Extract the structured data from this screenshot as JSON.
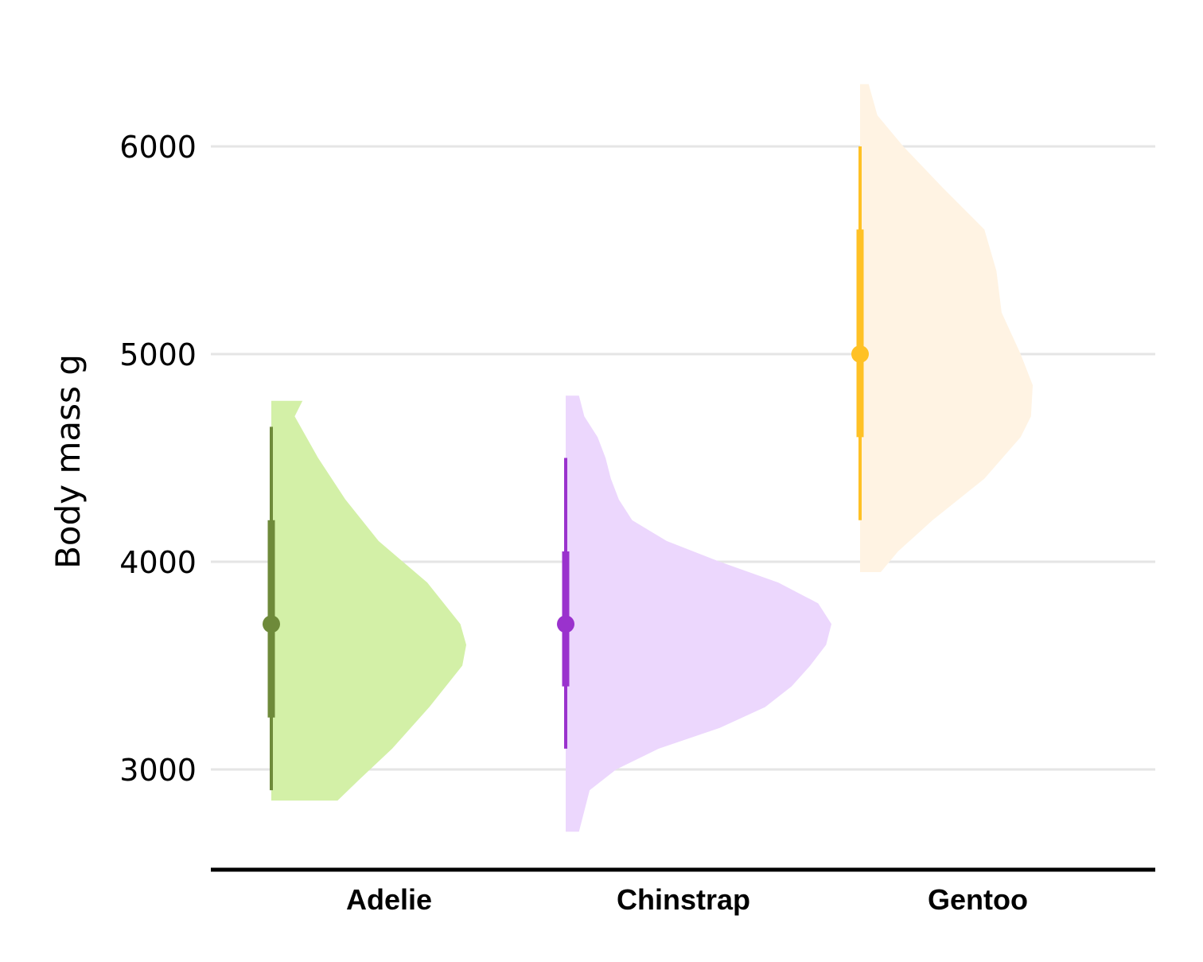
{
  "chart_data": {
    "type": "violin",
    "orientation": "vertical",
    "style": "half-violin with interval bars and median point",
    "title": "",
    "xlabel": "",
    "ylabel": "Body mass g",
    "ylim": [
      2520,
      6300
    ],
    "yticks": [
      3000,
      4000,
      5000,
      6000
    ],
    "grid": "horizontal",
    "categories": [
      "Adelie",
      "Chinstrap",
      "Gentoo"
    ],
    "series": [
      {
        "category": "Adelie",
        "fill_color": "#D3F0A7",
        "stat_color": "#6E8A3A",
        "min": 2900,
        "q1": 3250,
        "median": 3700,
        "q3": 4200,
        "max": 4650,
        "density": [
          [
            2850,
            0.34
          ],
          [
            2950,
            0.45
          ],
          [
            3100,
            0.62
          ],
          [
            3300,
            0.81
          ],
          [
            3500,
            0.98
          ],
          [
            3600,
            1.0
          ],
          [
            3700,
            0.97
          ],
          [
            3900,
            0.8
          ],
          [
            4100,
            0.55
          ],
          [
            4300,
            0.38
          ],
          [
            4500,
            0.24
          ],
          [
            4700,
            0.12
          ],
          [
            4775,
            0.16
          ]
        ]
      },
      {
        "category": "Chinstrap",
        "fill_color": "#ECD7FD",
        "stat_color": "#9A32CD",
        "min": 3100,
        "q1": 3400,
        "median": 3700,
        "q3": 4050,
        "max": 4500,
        "density": [
          [
            2700,
            0.05
          ],
          [
            2800,
            0.07
          ],
          [
            2900,
            0.09
          ],
          [
            3000,
            0.19
          ],
          [
            3100,
            0.35
          ],
          [
            3200,
            0.58
          ],
          [
            3300,
            0.75
          ],
          [
            3400,
            0.85
          ],
          [
            3500,
            0.92
          ],
          [
            3600,
            0.98
          ],
          [
            3700,
            1.0
          ],
          [
            3800,
            0.95
          ],
          [
            3900,
            0.8
          ],
          [
            4000,
            0.58
          ],
          [
            4100,
            0.38
          ],
          [
            4200,
            0.25
          ],
          [
            4300,
            0.2
          ],
          [
            4400,
            0.17
          ],
          [
            4500,
            0.15
          ],
          [
            4600,
            0.12
          ],
          [
            4700,
            0.07
          ],
          [
            4800,
            0.05
          ]
        ]
      },
      {
        "category": "Gentoo",
        "fill_color": "#FFF3E3",
        "stat_color": "#FFC125",
        "min": 4200,
        "q1": 4600,
        "median": 5000,
        "q3": 5600,
        "max": 6000,
        "density": [
          [
            3950,
            0.12
          ],
          [
            4050,
            0.22
          ],
          [
            4200,
            0.42
          ],
          [
            4400,
            0.72
          ],
          [
            4600,
            0.93
          ],
          [
            4700,
            0.99
          ],
          [
            4850,
            1.0
          ],
          [
            5000,
            0.93
          ],
          [
            5200,
            0.82
          ],
          [
            5400,
            0.79
          ],
          [
            5600,
            0.72
          ],
          [
            5800,
            0.48
          ],
          [
            6000,
            0.25
          ],
          [
            6150,
            0.1
          ],
          [
            6300,
            0.05
          ]
        ]
      }
    ]
  }
}
